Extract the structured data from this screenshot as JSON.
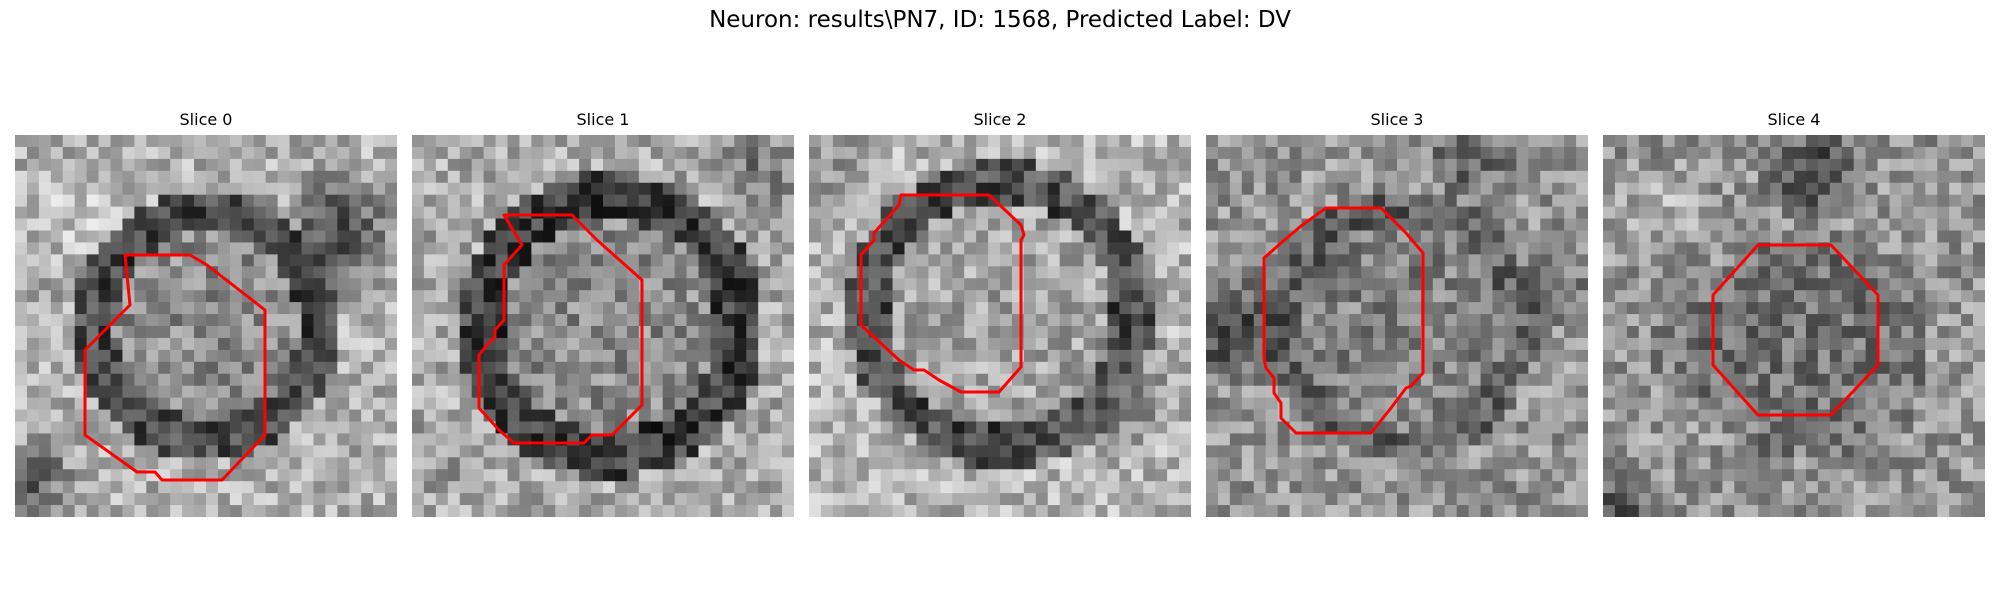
{
  "figure": {
    "title": "Neuron: results\\PN7, ID: 1568, Predicted Label: DV",
    "colors": {
      "background": "#ffffff",
      "contour": "#ff0000",
      "colormap": "grayscale"
    },
    "panels": [
      {
        "title": "Slice 0"
      },
      {
        "title": "Slice 1"
      },
      {
        "title": "Slice 2"
      },
      {
        "title": "Slice 3"
      },
      {
        "title": "Slice 4"
      }
    ]
  }
}
